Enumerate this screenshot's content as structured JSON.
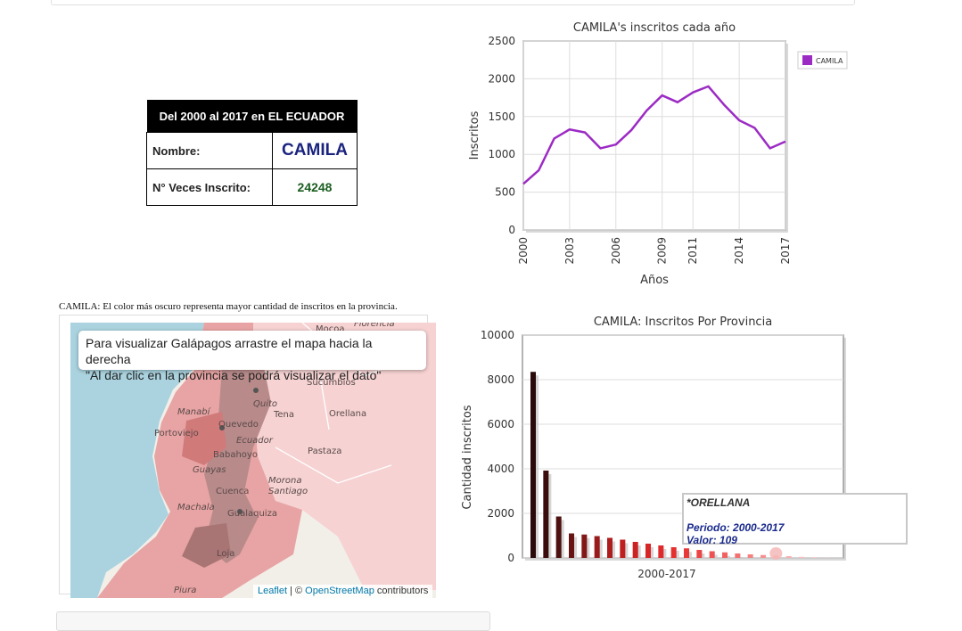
{
  "info_table": {
    "header": "Del 2000 al 2017 en EL ECUADOR",
    "name_label": "Nombre:",
    "name_value": "CAMILA",
    "count_label": "N° Veces Inscrito:",
    "count_value": "24248"
  },
  "map": {
    "caption": "CAMILA: El color más oscuro representa mayor cantidad de inscritos en la provincia.",
    "tooltip_line1": "Para visualizar Galápagos arrastre el mapa hacia la derecha",
    "tooltip_line2": "\"Al dar clic en la provincia se podrá visualizar el dato\"",
    "attribution_leaflet": "Leaflet",
    "attribution_sep": " | © ",
    "attribution_osm": "OpenStreetMap",
    "attribution_tail": " contributors",
    "place_labels": [
      "Florencia",
      "Mocoa",
      "Sucumbios",
      "Quito",
      "Tena",
      "Orellana",
      "Manabí",
      "Quevedo",
      "Portoviejo",
      "Ecuador",
      "Babahoyo",
      "Pastaza",
      "Guayas",
      "Morona Santiago",
      "Cuenca",
      "Machala",
      "Gualaquiza",
      "Loja",
      "Piura"
    ],
    "colors": {
      "water": "#aad3df",
      "land": "#f2efe9",
      "dark": "#b88a8a",
      "mid": "#e8a4a4",
      "light": "#f6d2d2"
    }
  },
  "chart_data": [
    {
      "type": "line",
      "title": "CAMILA's inscritos cada año",
      "xlabel": "Años",
      "ylabel": "Inscritos",
      "legend": "CAMILA",
      "legend_placement": "right",
      "color": "#9c2bc4",
      "x": [
        2000,
        2001,
        2002,
        2003,
        2004,
        2005,
        2006,
        2007,
        2008,
        2009,
        2010,
        2011,
        2012,
        2013,
        2014,
        2015,
        2016,
        2017
      ],
      "values": [
        610,
        790,
        1210,
        1330,
        1290,
        1080,
        1130,
        1320,
        1580,
        1780,
        1690,
        1820,
        1900,
        1660,
        1450,
        1350,
        1080,
        1170
      ],
      "xticks": [
        "2000",
        "2003",
        "2006",
        "2009",
        "2011",
        "2014",
        "2017"
      ],
      "yticks": [
        "0",
        "500",
        "1000",
        "1500",
        "2000",
        "2500"
      ],
      "ylim": [
        0,
        2500
      ],
      "grid": true
    },
    {
      "type": "bar",
      "title": "CAMILA: Inscritos Por Provincia",
      "xlabel": "2000-2017",
      "ylabel": "Cantidad inscritos",
      "ylim": [
        0,
        10000
      ],
      "yticks": [
        "0",
        "2000",
        "4000",
        "6000",
        "8000",
        "10000"
      ],
      "grid": true,
      "values": [
        8350,
        3920,
        1860,
        1100,
        1050,
        980,
        900,
        820,
        720,
        640,
        560,
        480,
        430,
        360,
        300,
        250,
        200,
        160,
        130,
        109,
        80,
        50,
        30,
        15
      ],
      "colors": [
        "#2a0a0a",
        "#3a0c0c",
        "#4e1010",
        "#661414",
        "#801818",
        "#981a1a",
        "#ad1d1d",
        "#bf1f1f",
        "#cc2222",
        "#d62626",
        "#de2a2a",
        "#e53030",
        "#e93838",
        "#ec4545",
        "#ee5353",
        "#f06262",
        "#f27171",
        "#f48080",
        "#f69090",
        "#f8a0a0",
        "#f9b0b0",
        "#fac0c0",
        "#fbd0d0",
        "#fde0e0"
      ],
      "tooltip": {
        "title": "*ORELLANA",
        "periodo_label": "Periodo:",
        "periodo_value": "2000-2017",
        "valor_label": "Valor:",
        "valor_value": "109"
      }
    }
  ]
}
